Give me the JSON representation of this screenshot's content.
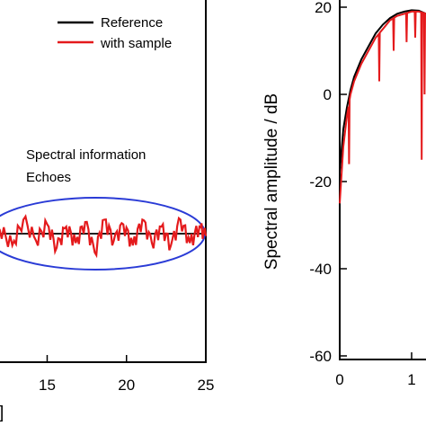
{
  "colors": {
    "reference": "#000000",
    "sample": "#e41a1c",
    "ellipse": "#2a3bd6",
    "frame": "#000000"
  },
  "chart_data": [
    {
      "type": "line",
      "panel": "left",
      "x_ticks": [
        15,
        20,
        25
      ],
      "x_axis_label_fragment": "]",
      "xlim": [
        11.8,
        25
      ],
      "legend": {
        "placement": "top-right",
        "entries": [
          "Reference",
          "with sample"
        ]
      },
      "annotations": {
        "text_line1": "Spectral information",
        "text_line2": "Echoes"
      },
      "series": [
        {
          "name": "Reference",
          "color": "#000000"
        },
        {
          "name": "with sample",
          "color": "#e41a1c",
          "echo_x": [
            12.0,
            12.8,
            13.5,
            14.3,
            15.0,
            15.6,
            16.2,
            16.8,
            17.4,
            18.0,
            18.6,
            19.2,
            19.8,
            20.4,
            21.0,
            21.6,
            22.2,
            22.8,
            23.4,
            24.0,
            24.6,
            25.0
          ],
          "echo_y": [
            0.2,
            -0.5,
            0.6,
            -0.3,
            0.4,
            -0.6,
            0.3,
            -0.4,
            0.5,
            -0.8,
            0.6,
            -0.3,
            0.4,
            -0.5,
            0.6,
            -0.4,
            0.3,
            -0.5,
            0.6,
            -0.4,
            0.3,
            -0.1
          ]
        }
      ]
    },
    {
      "type": "line",
      "panel": "right",
      "y_title": "Spectral amplitude / dB",
      "ylim": [
        -60,
        20
      ],
      "y_ticks": [
        20,
        0,
        -20,
        -40,
        -60
      ],
      "x_ticks": [
        0,
        1
      ],
      "xlim": [
        0,
        1.8
      ],
      "series": [
        {
          "name": "Reference",
          "color": "#000000",
          "x": [
            0.0,
            0.05,
            0.1,
            0.15,
            0.2,
            0.3,
            0.4,
            0.5,
            0.6,
            0.7,
            0.8,
            0.9,
            1.0,
            1.1,
            1.2
          ],
          "y": [
            -18,
            -8,
            -3,
            1,
            4,
            8,
            11,
            14,
            16,
            17.5,
            18.5,
            19,
            19.3,
            19.2,
            18.5
          ]
        },
        {
          "name": "with sample",
          "color": "#e41a1c",
          "x": [
            0.0,
            0.05,
            0.1,
            0.15,
            0.2,
            0.3,
            0.4,
            0.5,
            0.6,
            0.7,
            0.8,
            0.9,
            1.0,
            1.1,
            1.2
          ],
          "y": [
            -25,
            -12,
            -5,
            0,
            3,
            7,
            10,
            13,
            15,
            17,
            18,
            18.5,
            19,
            19,
            18.5
          ],
          "dips": [
            {
              "x": 0.13,
              "y": -16
            },
            {
              "x": 0.55,
              "y": 3
            },
            {
              "x": 0.75,
              "y": 10
            },
            {
              "x": 0.93,
              "y": 12
            },
            {
              "x": 1.05,
              "y": 13
            },
            {
              "x": 1.14,
              "y": -15
            },
            {
              "x": 1.18,
              "y": 0
            }
          ]
        }
      ]
    }
  ]
}
